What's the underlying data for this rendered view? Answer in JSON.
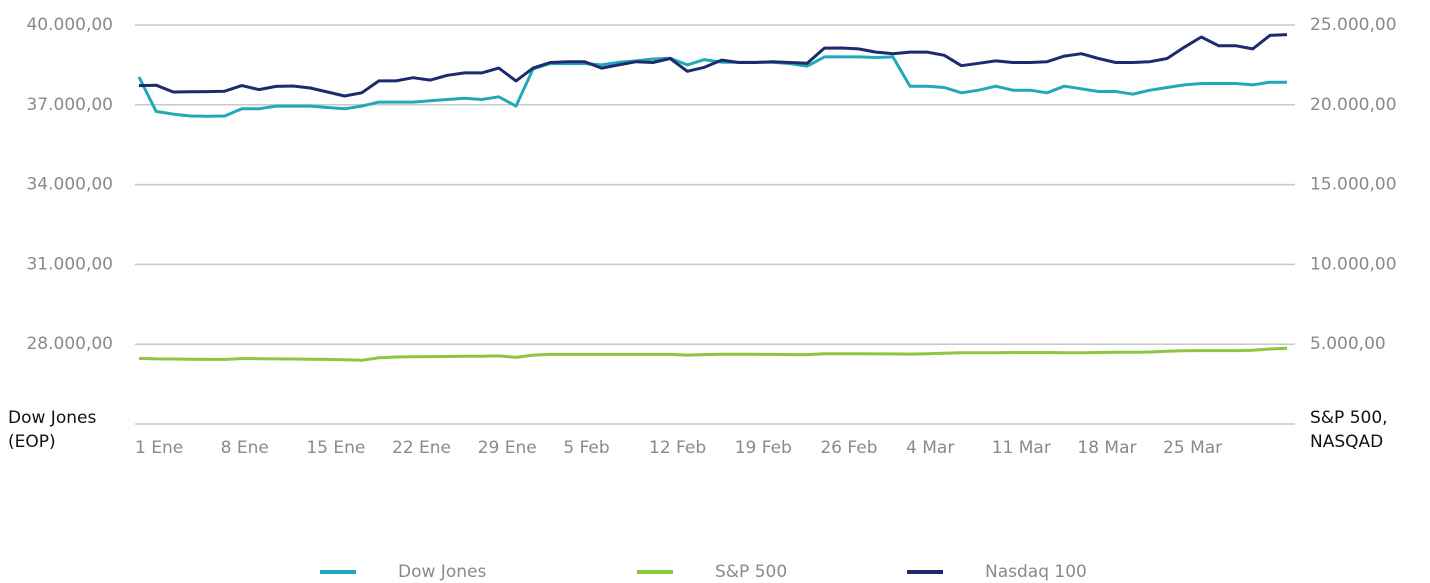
{
  "chart_data": {
    "type": "line",
    "y_label": [
      "Dow Jones",
      "(EOP)"
    ],
    "y2_label": [
      "S&P 500,",
      "NASQAD"
    ],
    "categories": [
      "1 Ene",
      null,
      null,
      null,
      null,
      "8 Ene",
      null,
      null,
      null,
      null,
      "15 Ene",
      null,
      null,
      null,
      null,
      "22 Ene",
      null,
      null,
      null,
      null,
      "29 Ene",
      null,
      null,
      null,
      null,
      "5 Feb",
      null,
      null,
      null,
      null,
      "12 Feb",
      null,
      null,
      null,
      null,
      "19 Feb",
      null,
      null,
      null,
      null,
      "26 Feb",
      null,
      null,
      null,
      null,
      "4 Mar",
      null,
      null,
      null,
      null,
      "11 Mar",
      null,
      null,
      null,
      null,
      "18 Mar",
      null,
      null,
      null,
      null,
      "25 Mar",
      null,
      null,
      null,
      null,
      null,
      null,
      null
    ],
    "ylim": [
      25000,
      40000
    ],
    "yticks": [
      {
        "value": 28000,
        "label": "28.000,00"
      },
      {
        "value": 31000,
        "label": "31.000,00"
      },
      {
        "value": 34000,
        "label": "34.000,00"
      },
      {
        "value": 37000,
        "label": "37.000,00"
      },
      {
        "value": 40000,
        "label": "40.000,00"
      }
    ],
    "y2lim": [
      0,
      25000
    ],
    "y2ticks": [
      {
        "value": 5000,
        "label": "5.000,00"
      },
      {
        "value": 10000,
        "label": "10.000,00"
      },
      {
        "value": 15000,
        "label": "15.000,00"
      },
      {
        "value": 20000,
        "label": "20.000,00"
      },
      {
        "value": 25000,
        "label": "25.000,00"
      }
    ],
    "grid": true,
    "legend": "bottom",
    "series": [
      {
        "name": "Dow Jones",
        "color": "#22a9b9",
        "values": [
          38050,
          36750,
          36650,
          36580,
          36570,
          36580,
          36850,
          36850,
          36950,
          36950,
          36950,
          36900,
          36850,
          36950,
          37100,
          37100,
          37100,
          37150,
          37200,
          37250,
          37200,
          37300,
          36950,
          38350,
          38550,
          38550,
          38550,
          38500,
          38600,
          38650,
          38720,
          38750,
          38500,
          38700,
          38600,
          38600,
          38600,
          38600,
          38550,
          38450,
          38800,
          38800,
          38800,
          38780,
          38800,
          37700,
          37700,
          37650,
          37450,
          37550,
          37700,
          37550,
          37550,
          37450,
          37700,
          37600,
          37500,
          37500,
          37400,
          37550,
          37650,
          37750,
          37800,
          37800,
          37800,
          37750,
          37850,
          37850
        ]
      },
      {
        "name": "S&P 500",
        "color": "#8dc63f",
        "axis": "y2",
        "values": [
          4110,
          4080,
          4070,
          4060,
          4050,
          4050,
          4100,
          4090,
          4080,
          4070,
          4060,
          4050,
          4030,
          3990,
          4150,
          4200,
          4210,
          4220,
          4230,
          4240,
          4250,
          4270,
          4170,
          4320,
          4360,
          4360,
          4360,
          4360,
          4360,
          4360,
          4360,
          4360,
          4320,
          4350,
          4370,
          4370,
          4370,
          4360,
          4350,
          4350,
          4400,
          4400,
          4400,
          4390,
          4390,
          4380,
          4400,
          4430,
          4460,
          4460,
          4470,
          4480,
          4480,
          4480,
          4470,
          4460,
          4480,
          4490,
          4490,
          4510,
          4560,
          4590,
          4600,
          4600,
          4600,
          4620,
          4700,
          4740
        ]
      },
      {
        "name": "Nasdaq 100",
        "color": "#1e2a6c",
        "axis": "y2",
        "values": [
          21200,
          21230,
          20800,
          20820,
          20830,
          20850,
          21200,
          20950,
          21150,
          21180,
          21050,
          20800,
          20550,
          20750,
          21500,
          21500,
          21700,
          21550,
          21850,
          22000,
          22000,
          22300,
          21500,
          22300,
          22650,
          22700,
          22700,
          22300,
          22500,
          22700,
          22650,
          22900,
          22100,
          22350,
          22800,
          22650,
          22650,
          22700,
          22650,
          22600,
          23550,
          23560,
          23500,
          23300,
          23200,
          23300,
          23300,
          23100,
          22450,
          22600,
          22750,
          22650,
          22650,
          22700,
          23050,
          23200,
          22900,
          22650,
          22650,
          22700,
          22900,
          23600,
          24250,
          23700,
          23700,
          23500,
          24350,
          24400
        ]
      }
    ]
  }
}
